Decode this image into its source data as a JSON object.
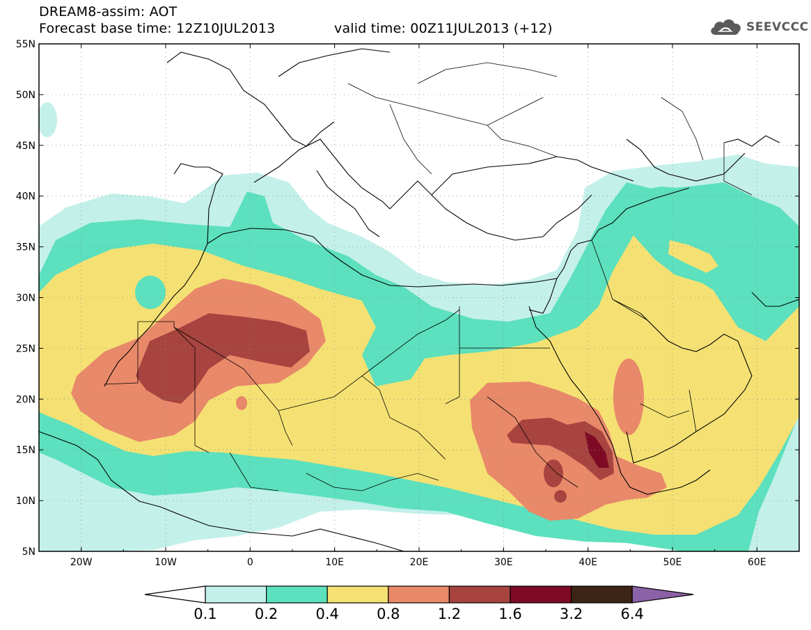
{
  "header": {
    "title": "DREAM8-assim: AOT",
    "base_time": "Forecast base time: 12Z10JUL2013",
    "valid_time": "valid time: 00Z11JUL2013 (+12)",
    "logo_text": "SEEVCCC",
    "logo_icon": "cloud-logo-icon"
  },
  "map": {
    "lon_range": [
      -25,
      65
    ],
    "lat_range": [
      5,
      55
    ],
    "lat_labels": [
      "55N",
      "50N",
      "45N",
      "40N",
      "35N",
      "30N",
      "25N",
      "20N",
      "15N",
      "10N",
      "5N"
    ],
    "lon_labels": [
      "20W",
      "10W",
      "0",
      "10E",
      "20E",
      "30E",
      "40E",
      "50E",
      "60E"
    ],
    "gridlines": true
  },
  "colorbar": {
    "levels": [
      "0.1",
      "0.2",
      "0.4",
      "0.8",
      "1.2",
      "1.6",
      "3.2",
      "6.4"
    ],
    "colors": [
      "#ffffff",
      "#c4f0ea",
      "#5ce0bd",
      "#f5e173",
      "#e8896a",
      "#a7443f",
      "#7f0a26",
      "#3d2516",
      "#8b62a8"
    ]
  }
}
